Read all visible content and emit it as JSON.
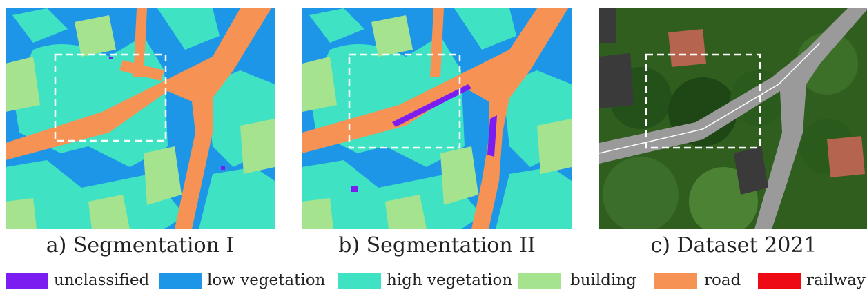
{
  "captions": {
    "a": "a) Segmentation I",
    "b": "b) Segmentation II",
    "c": "c) Dataset 2021"
  },
  "colors": {
    "unclassified": "#7b1cf0",
    "low_vegetation": "#1e96e8",
    "high_vegetation": "#3fe3c4",
    "building": "#a6e38e",
    "road": "#f79255",
    "railway": "#ee0a14"
  },
  "legend": [
    {
      "label": "unclassified",
      "color": "#7b1cf0"
    },
    {
      "label": "low vegetation",
      "color": "#1e96e8"
    },
    {
      "label": "high vegetation",
      "color": "#3fe3c4"
    },
    {
      "label": "building",
      "color": "#a6e38e"
    },
    {
      "label": "road",
      "color": "#f79255"
    },
    {
      "label": "railway",
      "color": "#ee0a14"
    }
  ]
}
